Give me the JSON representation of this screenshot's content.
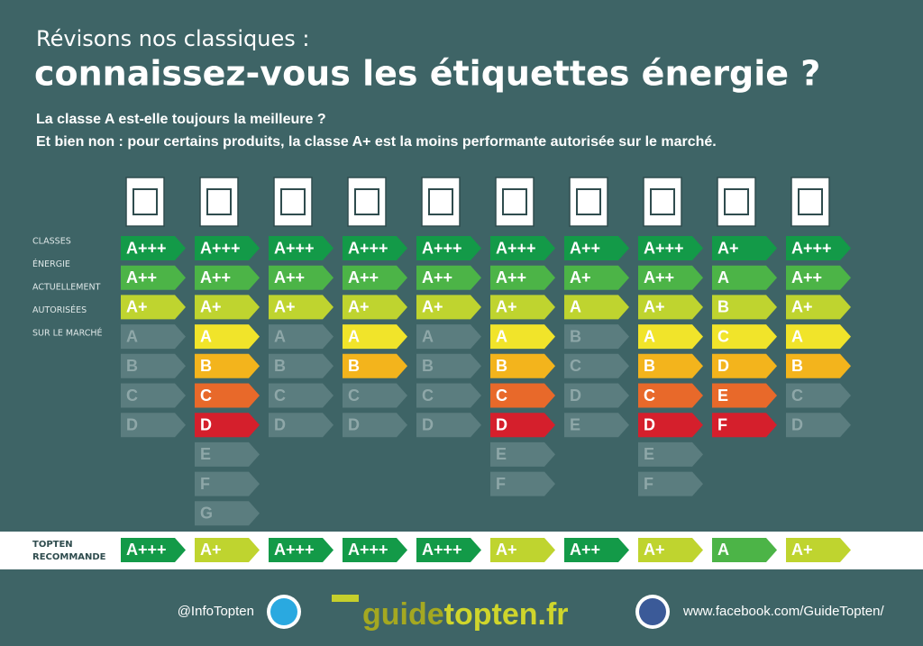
{
  "header": {
    "kicker": "Révisons nos classiques :",
    "title": "connaissez-vous les étiquettes énergie ?",
    "intro": [
      "La classe A est-elle toujours la meilleure ?",
      "Et bien non : pour certains produits, la classe A+ est la moins performante autorisée sur le marché."
    ]
  },
  "side_labels": [
    "CLASSES",
    "ÉNERGIE",
    "ACTUELLEMENT",
    "AUTORISÉES",
    "SUR LE MARCHÉ"
  ],
  "scale_colors": [
    "#139a48",
    "#4cb447",
    "#bfd42f",
    "#f1e42a",
    "#f3b41c",
    "#e8692a",
    "#d51f2c"
  ],
  "inactive_color": "#5b7d7f",
  "columns": [
    {
      "allowed": [
        "A+++",
        "A++",
        "A+"
      ],
      "not_allowed": [
        "A",
        "B",
        "C",
        "D"
      ]
    },
    {
      "allowed": [
        "A+++",
        "A++",
        "A+",
        "A",
        "B",
        "C",
        "D"
      ],
      "not_allowed": [
        "E",
        "F",
        "G"
      ]
    },
    {
      "allowed": [
        "A+++",
        "A++",
        "A+"
      ],
      "not_allowed": [
        "A",
        "B",
        "C",
        "D"
      ]
    },
    {
      "allowed": [
        "A+++",
        "A++",
        "A+",
        "A",
        "B"
      ],
      "not_allowed": [
        "C",
        "D"
      ]
    },
    {
      "allowed": [
        "A+++",
        "A++",
        "A+"
      ],
      "not_allowed": [
        "A",
        "B",
        "C",
        "D"
      ]
    },
    {
      "allowed": [
        "A+++",
        "A++",
        "A+",
        "A",
        "B",
        "C",
        "D"
      ],
      "not_allowed": [
        "E",
        "F"
      ]
    },
    {
      "allowed": [
        "A++",
        "A+",
        "A"
      ],
      "not_allowed": [
        "B",
        "C",
        "D",
        "E"
      ]
    },
    {
      "allowed": [
        "A+++",
        "A++",
        "A+",
        "A",
        "B",
        "C",
        "D"
      ],
      "not_allowed": [
        "E",
        "F"
      ]
    },
    {
      "allowed": [
        "A+",
        "A",
        "B",
        "C",
        "D",
        "E",
        "F"
      ],
      "not_allowed": []
    },
    {
      "allowed": [
        "A+++",
        "A++",
        "A+",
        "A",
        "B"
      ],
      "not_allowed": [
        "C",
        "D"
      ]
    }
  ],
  "recommend": {
    "label": [
      "TOPTEN",
      "RECOMMANDE"
    ],
    "classes": [
      "A+++",
      "A+",
      "A+++",
      "A+++",
      "A+++",
      "A+",
      "A++",
      "A+",
      "A",
      "A+"
    ]
  },
  "footer": {
    "twitter": "@InfoTopten",
    "logo": [
      "guide",
      "topten.fr"
    ],
    "facebook": "www.facebook.com/GuideTopten/"
  }
}
